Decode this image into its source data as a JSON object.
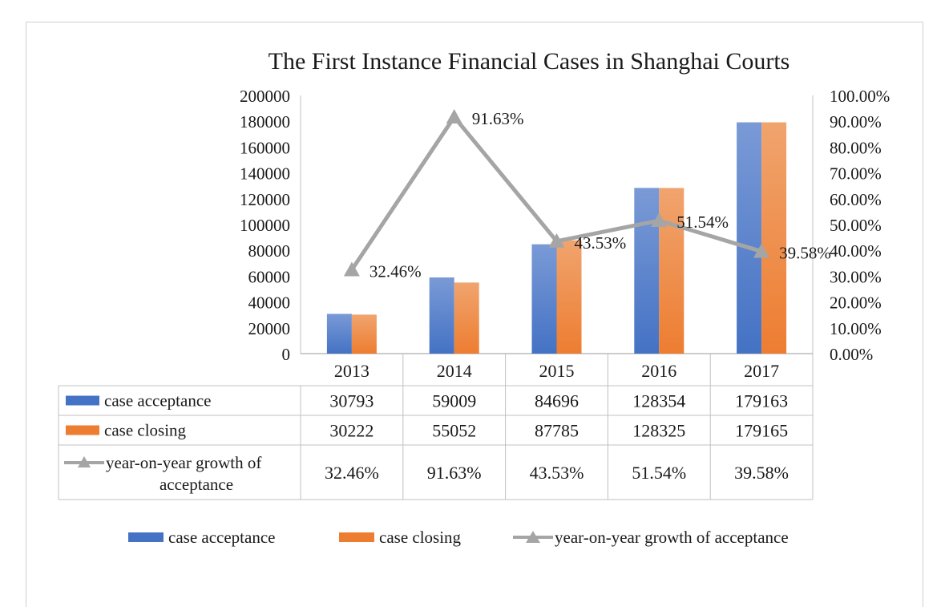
{
  "chart_data": {
    "type": "bar",
    "title": "The First Instance Financial Cases in Shanghai Courts",
    "categories": [
      "2013",
      "2014",
      "2015",
      "2016",
      "2017"
    ],
    "series": [
      {
        "name": "case acceptance",
        "type": "bar",
        "axis": "left",
        "color": "#4472c4",
        "values": [
          30793,
          59009,
          84696,
          128354,
          179163
        ],
        "labels": [
          "30793",
          "59009",
          "84696",
          "128354",
          "179163"
        ]
      },
      {
        "name": "case closing",
        "type": "bar",
        "axis": "left",
        "color": "#ed7d31",
        "values": [
          30222,
          55052,
          87785,
          128325,
          179165
        ],
        "labels": [
          "30222",
          "55052",
          "87785",
          "128325",
          "179165"
        ]
      },
      {
        "name": "year-on-year growth of acceptance",
        "type": "line",
        "axis": "right",
        "color": "#a5a5a5",
        "values": [
          32.46,
          91.63,
          43.53,
          51.54,
          39.58
        ],
        "labels": [
          "32.46%",
          "91.63%",
          "43.53%",
          "51.54%",
          "39.58%"
        ]
      }
    ],
    "legend_position": "bottom",
    "data_table": true,
    "y_left": {
      "min": 0,
      "max": 200000,
      "ticks": [
        "0",
        "20000",
        "40000",
        "60000",
        "80000",
        "100000",
        "120000",
        "140000",
        "160000",
        "180000",
        "200000"
      ]
    },
    "y_right": {
      "min": 0,
      "max": 100,
      "ticks": [
        "0.00%",
        "10.00%",
        "20.00%",
        "30.00%",
        "40.00%",
        "50.00%",
        "60.00%",
        "70.00%",
        "80.00%",
        "90.00%",
        "100.00%"
      ]
    }
  }
}
